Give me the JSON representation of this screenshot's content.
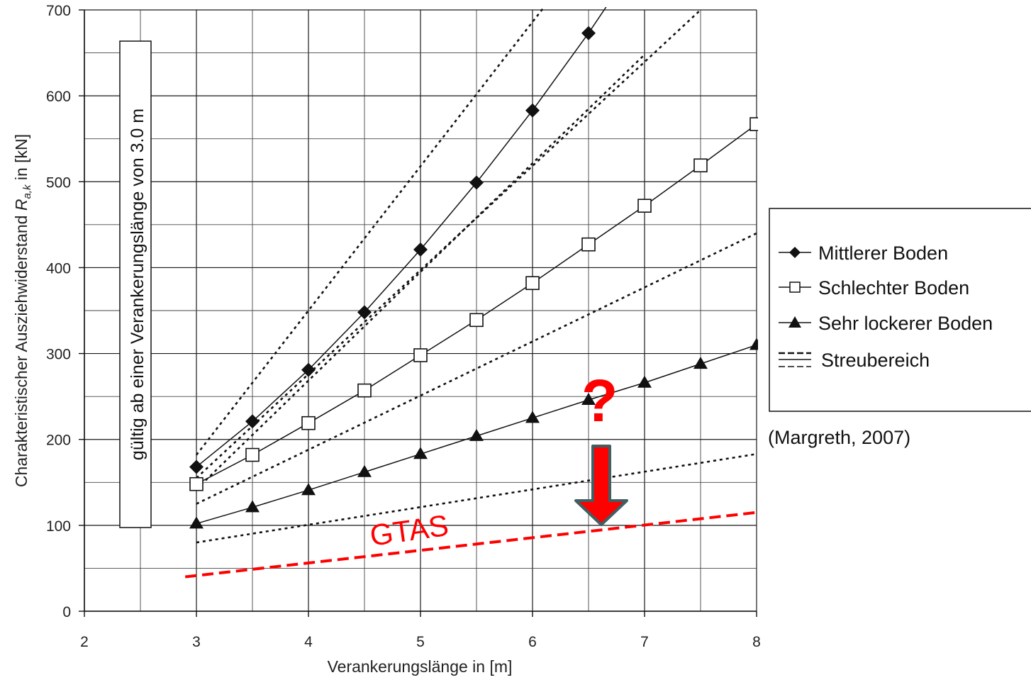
{
  "chart_data": {
    "type": "line",
    "xlabel": "Verankerungslänge in [m]",
    "ylabel_parts": [
      "Charakteristischer Ausziehwiderstand ",
      "R",
      "a,k",
      " in [kN]"
    ],
    "xlim": [
      2,
      8
    ],
    "ylim": [
      0,
      700
    ],
    "x_ticks": [
      2,
      3,
      4,
      5,
      6,
      7,
      8
    ],
    "y_ticks": [
      0,
      100,
      200,
      300,
      400,
      500,
      600,
      700
    ],
    "grid": true,
    "series": [
      {
        "name": "Mittlerer Boden",
        "marker": "diamond-filled",
        "x": [
          3,
          3.5,
          4,
          4.5,
          5,
          5.5,
          6,
          6.5,
          7
        ],
        "y": [
          168,
          221,
          281,
          348,
          421,
          499,
          583,
          673,
          770
        ]
      },
      {
        "name": "Schlechter Boden",
        "marker": "square-open",
        "x": [
          3,
          3.5,
          4,
          4.5,
          5,
          5.5,
          6,
          6.5,
          7,
          7.5,
          8
        ],
        "y": [
          148,
          182,
          219,
          257,
          298,
          339,
          382,
          427,
          472,
          519,
          567
        ]
      },
      {
        "name": "Sehr lockerer Boden",
        "marker": "triangle-filled",
        "x": [
          3,
          3.5,
          4,
          4.5,
          5,
          5.5,
          6,
          6.5,
          7,
          7.5,
          8
        ],
        "y": [
          102,
          121,
          141,
          162,
          183,
          204,
          225,
          246,
          266,
          288,
          310
        ]
      }
    ],
    "scatter_band_lines": [
      {
        "x": [
          3,
          6.5
        ],
        "y": [
          182,
          770
        ]
      },
      {
        "x": [
          3,
          7.5
        ],
        "y": [
          155,
          700
        ]
      },
      {
        "x": [
          3,
          7
        ],
        "y": [
          142,
          648
        ]
      },
      {
        "x": [
          3,
          8
        ],
        "y": [
          125,
          440
        ]
      },
      {
        "x": [
          3,
          8
        ],
        "y": [
          80,
          183
        ]
      }
    ],
    "gtas_line": {
      "x": [
        2.9,
        8
      ],
      "y": [
        40,
        115
      ]
    },
    "legend": {
      "position": "right",
      "entries": [
        "Mittlerer Boden",
        "Schlechter Boden",
        "Sehr lockerer Boden",
        "Streubereich"
      ]
    },
    "annotations": {
      "validity_note": "gültig ab einer Verankerungslänge von 3.0 m",
      "gtas_label": "GTAS",
      "question_mark": "?",
      "source": "(Margreth, 2007)"
    },
    "colors": {
      "series_line": "#111111",
      "grid": "#222222",
      "gtas": "#ff0000",
      "arrow_fill": "#ff0000",
      "arrow_outline": "#3f5f63"
    }
  }
}
